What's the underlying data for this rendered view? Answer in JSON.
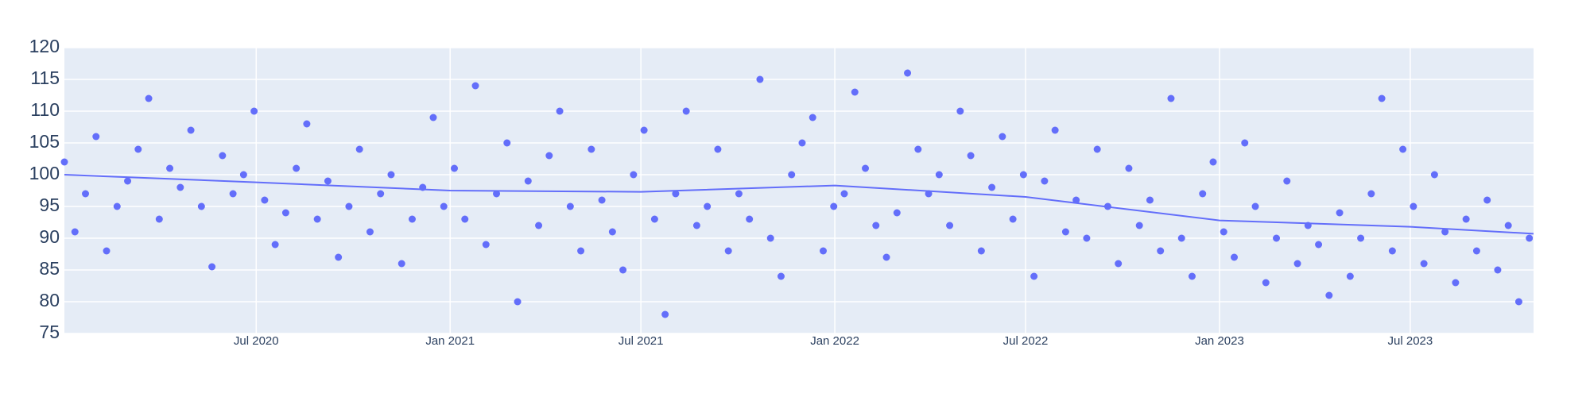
{
  "chart_data": {
    "type": "scatter",
    "xlim": [
      "2020-01-01",
      "2023-10-26"
    ],
    "ylim": [
      75,
      120
    ],
    "yticks": [
      75,
      80,
      85,
      90,
      95,
      100,
      105,
      110,
      115,
      120
    ],
    "xticks": [
      {
        "value": "2020-07-01",
        "label": "Jul 2020"
      },
      {
        "value": "2021-01-01",
        "label": "Jan 2021"
      },
      {
        "value": "2021-07-01",
        "label": "Jul 2021"
      },
      {
        "value": "2022-01-01",
        "label": "Jan 2022"
      },
      {
        "value": "2022-07-01",
        "label": "Jul 2022"
      },
      {
        "value": "2023-01-01",
        "label": "Jan 2023"
      },
      {
        "value": "2023-07-01",
        "label": "Jul 2023"
      }
    ],
    "grid": true,
    "series": [
      {
        "mode": "markers",
        "color": "#636efa",
        "x": [
          "2020-01-01",
          "2020-01-11",
          "2020-01-21",
          "2020-01-31",
          "2020-02-10",
          "2020-02-20",
          "2020-03-01",
          "2020-03-11",
          "2020-03-21",
          "2020-03-31",
          "2020-04-10",
          "2020-04-20",
          "2020-04-30",
          "2020-05-10",
          "2020-05-20",
          "2020-05-30",
          "2020-06-09",
          "2020-06-19",
          "2020-06-29",
          "2020-07-09",
          "2020-07-19",
          "2020-07-29",
          "2020-08-08",
          "2020-08-18",
          "2020-08-28",
          "2020-09-07",
          "2020-09-17",
          "2020-09-27",
          "2020-10-07",
          "2020-10-17",
          "2020-10-27",
          "2020-11-06",
          "2020-11-16",
          "2020-11-26",
          "2020-12-06",
          "2020-12-16",
          "2020-12-26",
          "2021-01-05",
          "2021-01-15",
          "2021-01-25",
          "2021-02-04",
          "2021-02-14",
          "2021-02-24",
          "2021-03-06",
          "2021-03-16",
          "2021-03-26",
          "2021-04-05",
          "2021-04-15",
          "2021-04-25",
          "2021-05-05",
          "2021-05-15",
          "2021-05-25",
          "2021-06-04",
          "2021-06-14",
          "2021-06-24",
          "2021-07-04",
          "2021-07-14",
          "2021-07-24",
          "2021-08-03",
          "2021-08-13",
          "2021-08-23",
          "2021-09-02",
          "2021-09-12",
          "2021-09-22",
          "2021-10-02",
          "2021-10-12",
          "2021-10-22",
          "2021-11-01",
          "2021-11-11",
          "2021-11-21",
          "2021-12-01",
          "2021-12-11",
          "2021-12-21",
          "2021-12-31",
          "2022-01-10",
          "2022-01-20",
          "2022-01-30",
          "2022-02-09",
          "2022-02-19",
          "2022-03-01",
          "2022-03-11",
          "2022-03-21",
          "2022-03-31",
          "2022-04-10",
          "2022-04-20",
          "2022-04-30",
          "2022-05-10",
          "2022-05-20",
          "2022-05-30",
          "2022-06-09",
          "2022-06-19",
          "2022-06-29",
          "2022-07-09",
          "2022-07-19",
          "2022-07-29",
          "2022-08-08",
          "2022-08-18",
          "2022-08-28",
          "2022-09-07",
          "2022-09-17",
          "2022-09-27",
          "2022-10-07",
          "2022-10-17",
          "2022-10-27",
          "2022-11-06",
          "2022-11-16",
          "2022-11-26",
          "2022-12-06",
          "2022-12-16",
          "2022-12-26",
          "2023-01-05",
          "2023-01-15",
          "2023-01-25",
          "2023-02-04",
          "2023-02-14",
          "2023-02-24",
          "2023-03-06",
          "2023-03-16",
          "2023-03-26",
          "2023-04-05",
          "2023-04-15",
          "2023-04-25",
          "2023-05-05",
          "2023-05-15",
          "2023-05-25",
          "2023-06-04",
          "2023-06-14",
          "2023-06-24",
          "2023-07-04",
          "2023-07-14",
          "2023-07-24",
          "2023-08-03",
          "2023-08-13",
          "2023-08-23",
          "2023-09-02",
          "2023-09-12",
          "2023-09-22",
          "2023-10-02",
          "2023-10-12",
          "2023-10-22"
        ],
        "values": [
          102,
          91,
          97,
          106,
          88,
          95,
          99,
          104,
          112,
          93,
          101,
          98,
          107,
          95,
          85.5,
          103,
          97,
          100,
          110,
          96,
          89,
          94,
          101,
          108,
          93,
          99,
          87,
          95,
          104,
          91,
          97,
          100,
          86,
          93,
          98,
          109,
          95,
          101,
          93,
          114,
          89,
          97,
          105,
          80,
          99,
          92,
          103,
          110,
          95,
          88,
          104,
          96,
          91,
          85,
          100,
          107,
          93,
          78,
          97,
          110,
          92,
          95,
          104,
          88,
          97,
          93,
          115,
          90,
          84,
          100,
          105,
          109,
          88,
          95,
          97,
          113,
          101,
          92,
          87,
          94,
          116,
          104,
          97,
          100,
          92,
          110,
          103,
          88,
          98,
          106,
          93,
          100,
          84,
          99,
          107,
          91,
          96,
          90,
          104,
          95,
          86,
          101,
          92,
          96,
          88,
          112,
          90,
          84,
          97,
          102,
          91,
          87,
          105,
          95,
          83,
          90,
          99,
          86,
          92,
          89,
          81,
          94,
          84,
          90,
          97,
          112,
          88,
          104,
          95,
          86,
          100,
          91,
          83,
          93,
          88,
          96,
          85,
          92,
          80,
          90
        ]
      },
      {
        "mode": "lines",
        "color": "#636efa",
        "x": [
          "2020-01-01",
          "2020-07-01",
          "2021-01-01",
          "2021-07-01",
          "2022-01-01",
          "2022-07-01",
          "2023-01-01",
          "2023-07-01",
          "2023-10-26"
        ],
        "values": [
          100,
          98.8,
          97.5,
          97.3,
          98.3,
          96.5,
          92.8,
          91.8,
          90.7
        ]
      }
    ]
  }
}
